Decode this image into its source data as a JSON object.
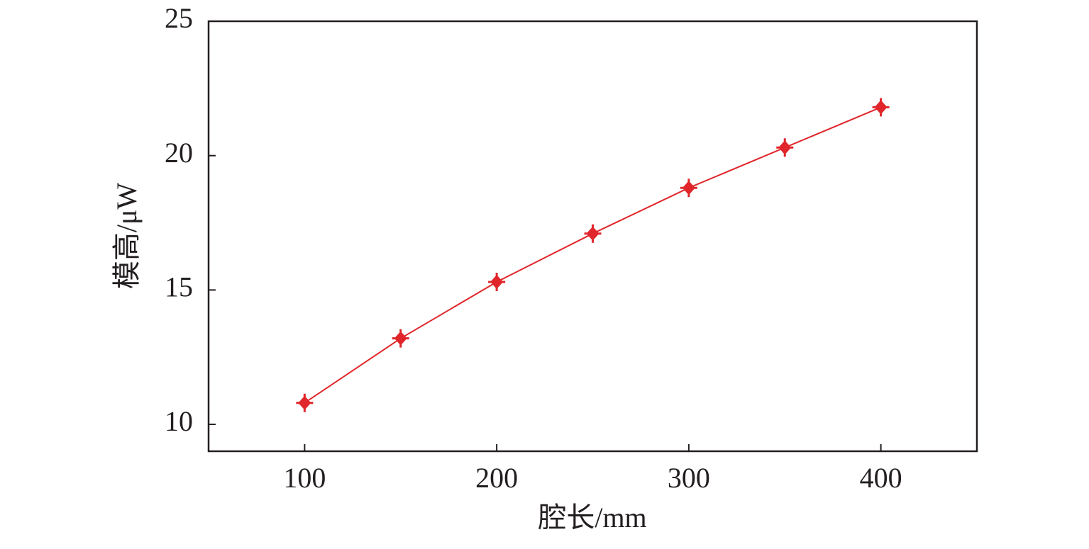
{
  "chart_data": {
    "type": "line",
    "x_label": "腔长/mm",
    "y_label": "模高/μW",
    "x": [
      100,
      150,
      200,
      250,
      300,
      350,
      400
    ],
    "series": [
      {
        "color": "#e0262b",
        "values": [
          10.8,
          13.2,
          15.3,
          17.1,
          18.8,
          20.3,
          21.8
        ]
      }
    ],
    "xlim": [
      50,
      450
    ],
    "xticks": [
      100,
      200,
      300,
      400
    ],
    "ylim": [
      9,
      25
    ],
    "yticks": [
      10,
      15,
      20,
      25
    ]
  }
}
